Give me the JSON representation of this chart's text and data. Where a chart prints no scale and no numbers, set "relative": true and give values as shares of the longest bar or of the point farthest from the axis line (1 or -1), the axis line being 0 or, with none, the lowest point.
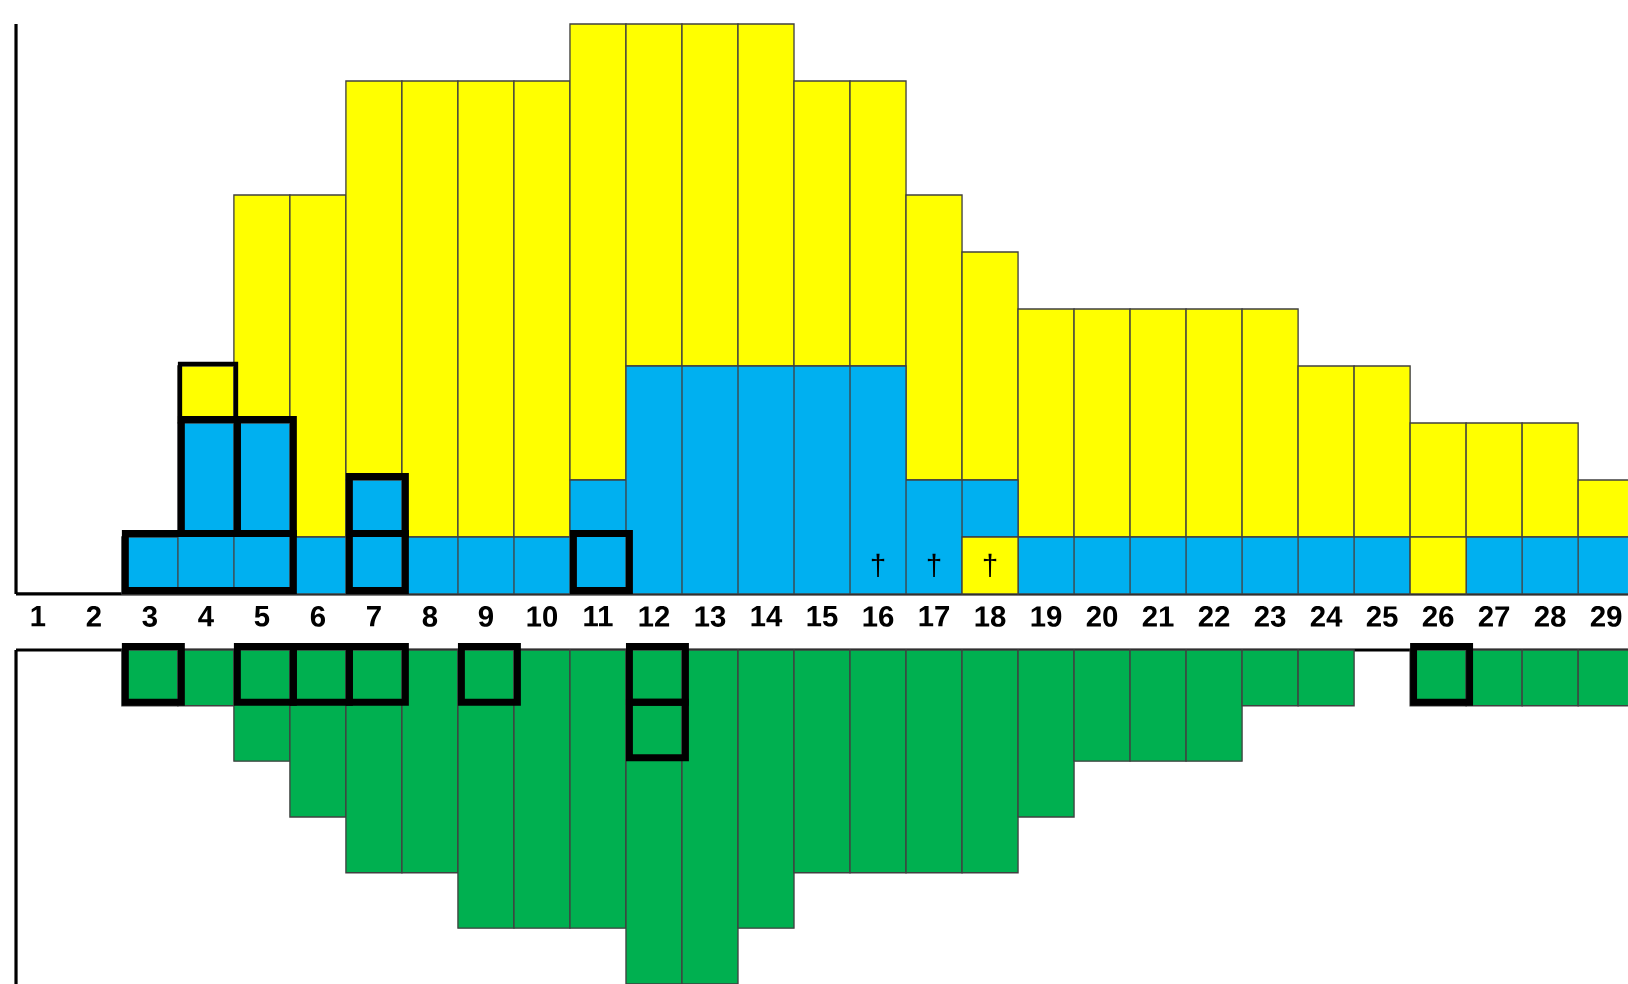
{
  "chart_data": [
    {
      "type": "bar",
      "relative": true,
      "stacked": true,
      "categories": [
        "1",
        "2",
        "3",
        "4",
        "5",
        "6",
        "7",
        "8",
        "9",
        "10",
        "11",
        "12",
        "13",
        "14",
        "15",
        "16",
        "17",
        "18",
        "19",
        "20",
        "21",
        "22",
        "23",
        "24",
        "25",
        "26",
        "27",
        "28",
        "29"
      ],
      "series": [
        {
          "color": "#ffff00",
          "values": [
            0,
            0,
            0,
            0,
            0,
            0,
            0,
            0,
            0,
            0,
            0,
            0,
            0,
            0,
            0,
            0,
            0,
            0.1,
            0,
            0,
            0,
            0,
            0,
            0,
            0,
            0.1,
            0,
            0,
            0
          ]
        },
        {
          "color": "#00b0f0",
          "values": [
            0,
            0,
            0.1,
            0.3,
            0.3,
            0.1,
            0.2,
            0.1,
            0.1,
            0.1,
            0.2,
            0.4,
            0.4,
            0.4,
            0.4,
            0.4,
            0.2,
            0.1,
            0.1,
            0.1,
            0.1,
            0.1,
            0.1,
            0.1,
            0.1,
            0,
            0.1,
            0.1,
            0.1
          ]
        },
        {
          "color": "#ffff00",
          "values": [
            0,
            0,
            0,
            0.1,
            0.4,
            0.6,
            0.7,
            0.8,
            0.8,
            0.8,
            0.8,
            0.6,
            0.6,
            0.6,
            0.5,
            0.5,
            0.5,
            0.4,
            0.4,
            0.4,
            0.4,
            0.4,
            0.4,
            0.3,
            0.3,
            0.2,
            0.2,
            0.2,
            0.1
          ]
        }
      ],
      "annotations": [
        "†",
        "†",
        "†"
      ]
    },
    {
      "type": "bar",
      "relative": true,
      "categories": [
        null,
        null,
        null,
        null,
        null,
        null,
        null,
        null,
        null,
        null,
        null,
        null,
        null,
        null,
        null,
        null,
        null,
        null,
        null,
        null,
        null,
        null,
        null,
        null,
        null,
        null,
        null,
        null,
        null
      ],
      "series": [
        {
          "color": "#00b050",
          "values": [
            null,
            null,
            -0.167,
            -0.167,
            -0.333,
            -0.5,
            -0.667,
            -0.667,
            -0.833,
            -0.833,
            -0.833,
            -1,
            -1,
            -0.833,
            -0.667,
            -0.667,
            -0.667,
            -0.667,
            -0.5,
            -0.333,
            -0.333,
            -0.333,
            -0.167,
            -0.167,
            null,
            -0.167,
            -0.167,
            -0.167,
            -0.167
          ]
        }
      ]
    }
  ]
}
